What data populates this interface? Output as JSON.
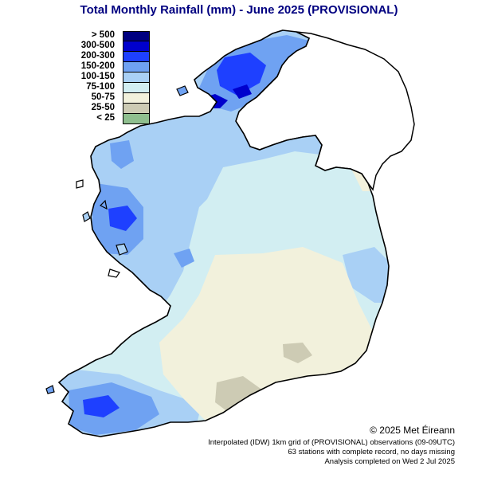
{
  "title": "Total Monthly Rainfall (mm) - June 2025  (PROVISIONAL)",
  "legend": [
    {
      "label": "> 500",
      "color": "#000080"
    },
    {
      "label": "300-500",
      "color": "#0000cd"
    },
    {
      "label": "200-300",
      "color": "#1e40ff"
    },
    {
      "label": "150-200",
      "color": "#6fa2f2"
    },
    {
      "label": "100-150",
      "color": "#a9d0f5"
    },
    {
      "label": "75-100",
      "color": "#d2eef2"
    },
    {
      "label": "50-75",
      "color": "#f2f1dc"
    },
    {
      "label": "25-50",
      "color": "#cdcbb4"
    },
    {
      "label": "< 25",
      "color": "#8fbf8f"
    }
  ],
  "copyright": "© 2025 Met Éireann",
  "footer": {
    "line1": "Interpolated (IDW) 1km grid of  (PROVISIONAL) observations (09-09UTC)",
    "line2": "63 stations with complete record, no days missing",
    "line3": "Analysis completed on Wed 2 Jul 2025"
  }
}
